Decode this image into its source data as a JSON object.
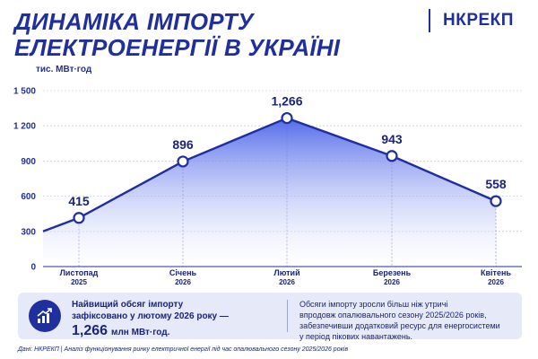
{
  "header": {
    "title_line1": "ДИНАМІКА ІМПОРТУ",
    "title_line2": "ЕЛЕКТРОЕНЕРГІЇ В УКРАЇНІ",
    "brand": "НКРЕКП"
  },
  "colors": {
    "primary": "#1f2f9e",
    "area_top": "#4a63e8",
    "area_bottom": "#ffffff",
    "panel": "#e6eaf8"
  },
  "chart_data": {
    "type": "area",
    "unit_label": "тис. МВт·год",
    "categories": [
      {
        "month": "Листопад",
        "year": "2025"
      },
      {
        "month": "Січень",
        "year": "2026"
      },
      {
        "month": "Лютий",
        "year": "2026"
      },
      {
        "month": "Березень",
        "year": "2026"
      },
      {
        "month": "Квітень",
        "year": "2026"
      }
    ],
    "series": [
      {
        "values": [
          415,
          896,
          1266,
          943,
          558
        ]
      }
    ],
    "data_labels": [
      "415",
      "896",
      "1,266",
      "943",
      "558"
    ],
    "ylim": [
      0,
      1500
    ],
    "yticks": [
      0,
      300,
      600,
      900,
      1200,
      1500
    ],
    "ytick_labels": [
      "0",
      "300",
      "600",
      "900",
      "1 200",
      "1 500"
    ],
    "grid": true,
    "line_starts_before_first_category_at": 300
  },
  "info": {
    "icon": "growth-chart-icon",
    "left_line1": "Найвищий обсяг імпорту",
    "left_line2": "зафіксовано у лютому 2026 року —",
    "big_value": "1,266",
    "big_unit": "млн МВт·год.",
    "right_line1": "Обсяги імпорту зросли більш ніж утричі",
    "right_line2": "впродовж опалювального сезону 2025/2026 років,",
    "right_line3": "забезпечивши додатковий ресурс для енергосистеми",
    "right_line4": "у період пікових навантажень."
  },
  "source": "Дані: НКРЕКП | Аналіз функціонування ринку електричної енергії під час опалювального сезону 2025/2026 років"
}
